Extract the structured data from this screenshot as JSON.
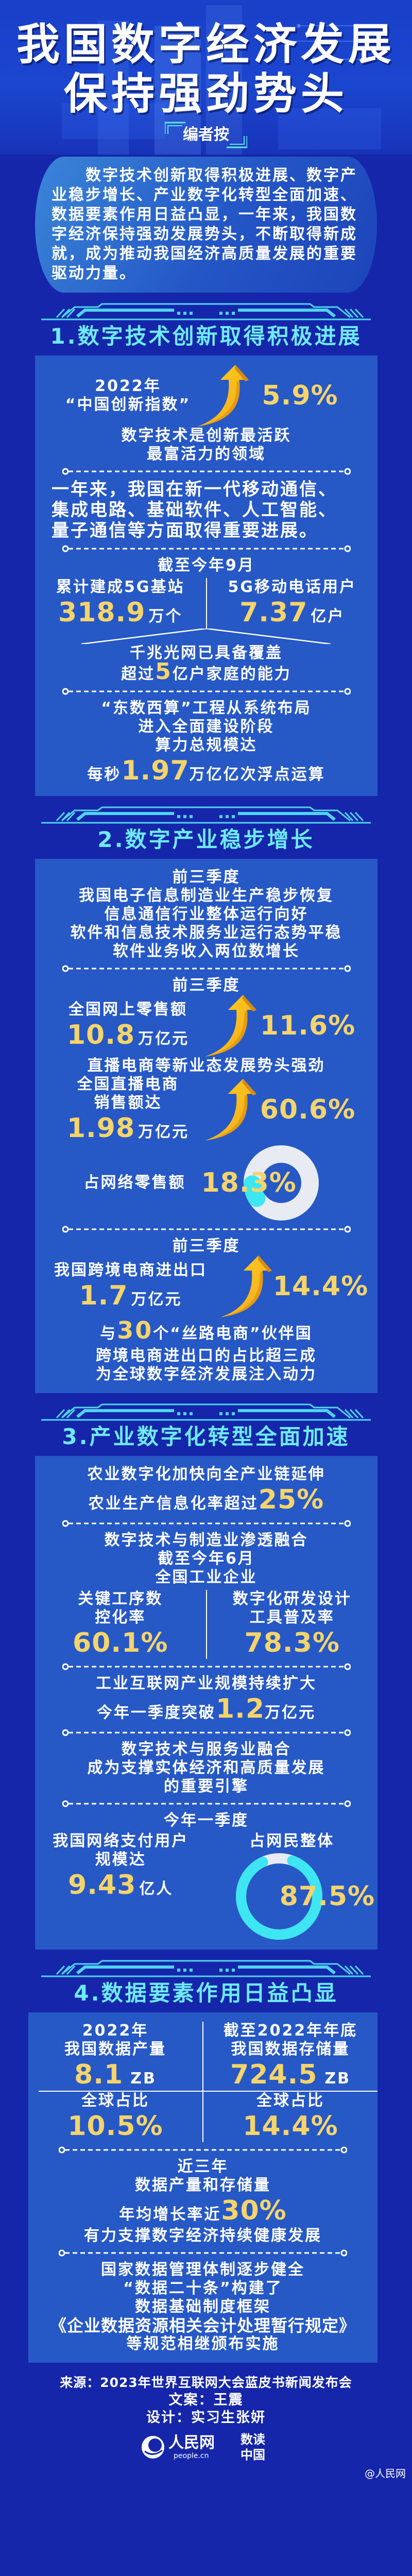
{
  "colors": {
    "background": "#1526aa",
    "box": "#2658c6",
    "accent_yellow": "#f5d46a",
    "accent_cyan": "#6eeaf8",
    "ring_grey": "#e8ecf2",
    "ring_cyan": "#3de6f2"
  },
  "header": {
    "title_line1": "我国数字经济发展",
    "title_line2": "保持强劲势头",
    "editor_note": "编者按"
  },
  "intro": "数字技术创新取得积极进展、数字产业稳步增长、产业数字化转型全面加速、数据要素作用日益凸显，一年来，我国数字经济保持强劲发展势头，不断取得新成就，成为推动我国经济高质量发展的重要驱动力量。",
  "section1": {
    "title": "1.数字技术创新取得积极进展",
    "innovation": {
      "year": "2022年",
      "label": "“中国创新指数”",
      "growth": "5.9%",
      "icon": "arrow-up-icon"
    },
    "innovation_note": [
      "数字技术是创新最活跃",
      "最富活力的领域"
    ],
    "progress": [
      "一年来，我国在新一代移动通信、",
      "集成电路、基础软件、人工智能、",
      "量子通信等方面取得重要进展。"
    ],
    "as_of": "截至今年9月",
    "stations": {
      "label": "累计建成5G基站",
      "value": "318.9",
      "unit": "万个"
    },
    "users": {
      "label": "5G移动电话用户",
      "value": "7.37",
      "unit": "亿户"
    },
    "gigabit": {
      "line1": "千兆光网已具备覆盖",
      "prefix": "超过",
      "value": "5",
      "suffix": "亿户家庭的能力"
    },
    "east_west": {
      "lines": [
        "“东数西算”工程从系统布局",
        "进入全面建设阶段",
        "算力总规模达"
      ],
      "prefix": "每秒",
      "value": "1.97",
      "suffix": "万亿亿次浮点运算"
    }
  },
  "section2": {
    "title": "2.数字产业稳步增长",
    "lines": [
      "前三季度",
      "我国电子信息制造业生产稳步恢复",
      "信息通信行业整体运行向好",
      "软件和信息技术服务业运行态势平稳",
      "软件业务收入两位数增长"
    ],
    "period": "前三季度",
    "online_retail": {
      "label": "全国网上零售额",
      "value": "10.8",
      "unit": "万亿元",
      "growth": "11.6%"
    },
    "live_heading": "直播电商等新业态发展势头强劲",
    "live_sales": {
      "label1": "全国直播电商",
      "label2": "销售额达",
      "value": "1.98",
      "unit": "万亿元",
      "growth": "60.6%"
    },
    "share": {
      "label": "占网络零售额",
      "value": "18.3%",
      "percent": 18.3
    },
    "period2": "前三季度",
    "cross_border": {
      "label": "我国跨境电商进出口",
      "value": "1.7",
      "unit": "万亿元",
      "growth": "14.4%"
    },
    "silk": {
      "prefix": "与",
      "value": "30",
      "suffix": "个“丝路电商”伙伴国",
      "line2": "跨境电商进出口的占比超三成",
      "line3": "为全球数字经济发展注入动力"
    }
  },
  "section3": {
    "title": "3.产业数字化转型全面加速",
    "agri": {
      "line1": "农业数字化加快向全产业链延伸",
      "prefix": "农业生产信息化率超过",
      "value": "25%"
    },
    "manu_heading": "数字技术与制造业渗透融合",
    "as_of": "截至今年6月",
    "scope": "全国工业企业",
    "nc": {
      "label1": "关键工序数",
      "label2": "控化率",
      "value": "60.1%"
    },
    "rd": {
      "label1": "数字化研发设计",
      "label2": "工具普及率",
      "value": "78.3%"
    },
    "iiot": {
      "line1": "工业互联网产业规模持续扩大",
      "prefix": "今年一季度突破",
      "value": "1.2",
      "suffix": "万亿元"
    },
    "service": [
      "数字技术与服务业融合",
      "成为支撑实体经济和高质量发展",
      "的重要引擎"
    ],
    "period": "今年一季度",
    "payment": {
      "label1": "我国网络支付用户",
      "label2": "规模达",
      "value": "9.43",
      "unit": "亿人"
    },
    "netizen_share": {
      "label": "占网民整体",
      "value": "87.5%",
      "percent": 87.5
    }
  },
  "section4": {
    "title": "4.数据要素作用日益凸显",
    "left": {
      "period": "2022年",
      "label": "我国数据产量",
      "value": "8.1",
      "unit": "ZB",
      "share_label": "全球占比",
      "share": "10.5%"
    },
    "right": {
      "period": "截至2022年年底",
      "label": "我国数据存储量",
      "value": "724.5",
      "unit": "ZB",
      "share_label": "全球占比",
      "share": "14.4%"
    },
    "growth": {
      "line1": "近三年",
      "line2": "数据产量和存储量",
      "prefix": "年均增长率近",
      "value": "30%",
      "line4": "有力支撑数字经济持续健康发展"
    },
    "policy": [
      "国家数据管理体制逐步健全",
      "“数据二十条”构建了",
      "数据基础制度框架",
      "《企业数据资源相关会计处理暂行规定》",
      "等规范相继颁布实施"
    ]
  },
  "footer": {
    "source": "来源：2023年世界互联网大会蓝皮书新闻发布会",
    "copy": "文案：王震",
    "design": "设计：实习生张妍",
    "logo1_text": "人民网",
    "logo1_sub": "people.cn",
    "logo2_text": "数读中国",
    "watermark": "@人民网"
  }
}
